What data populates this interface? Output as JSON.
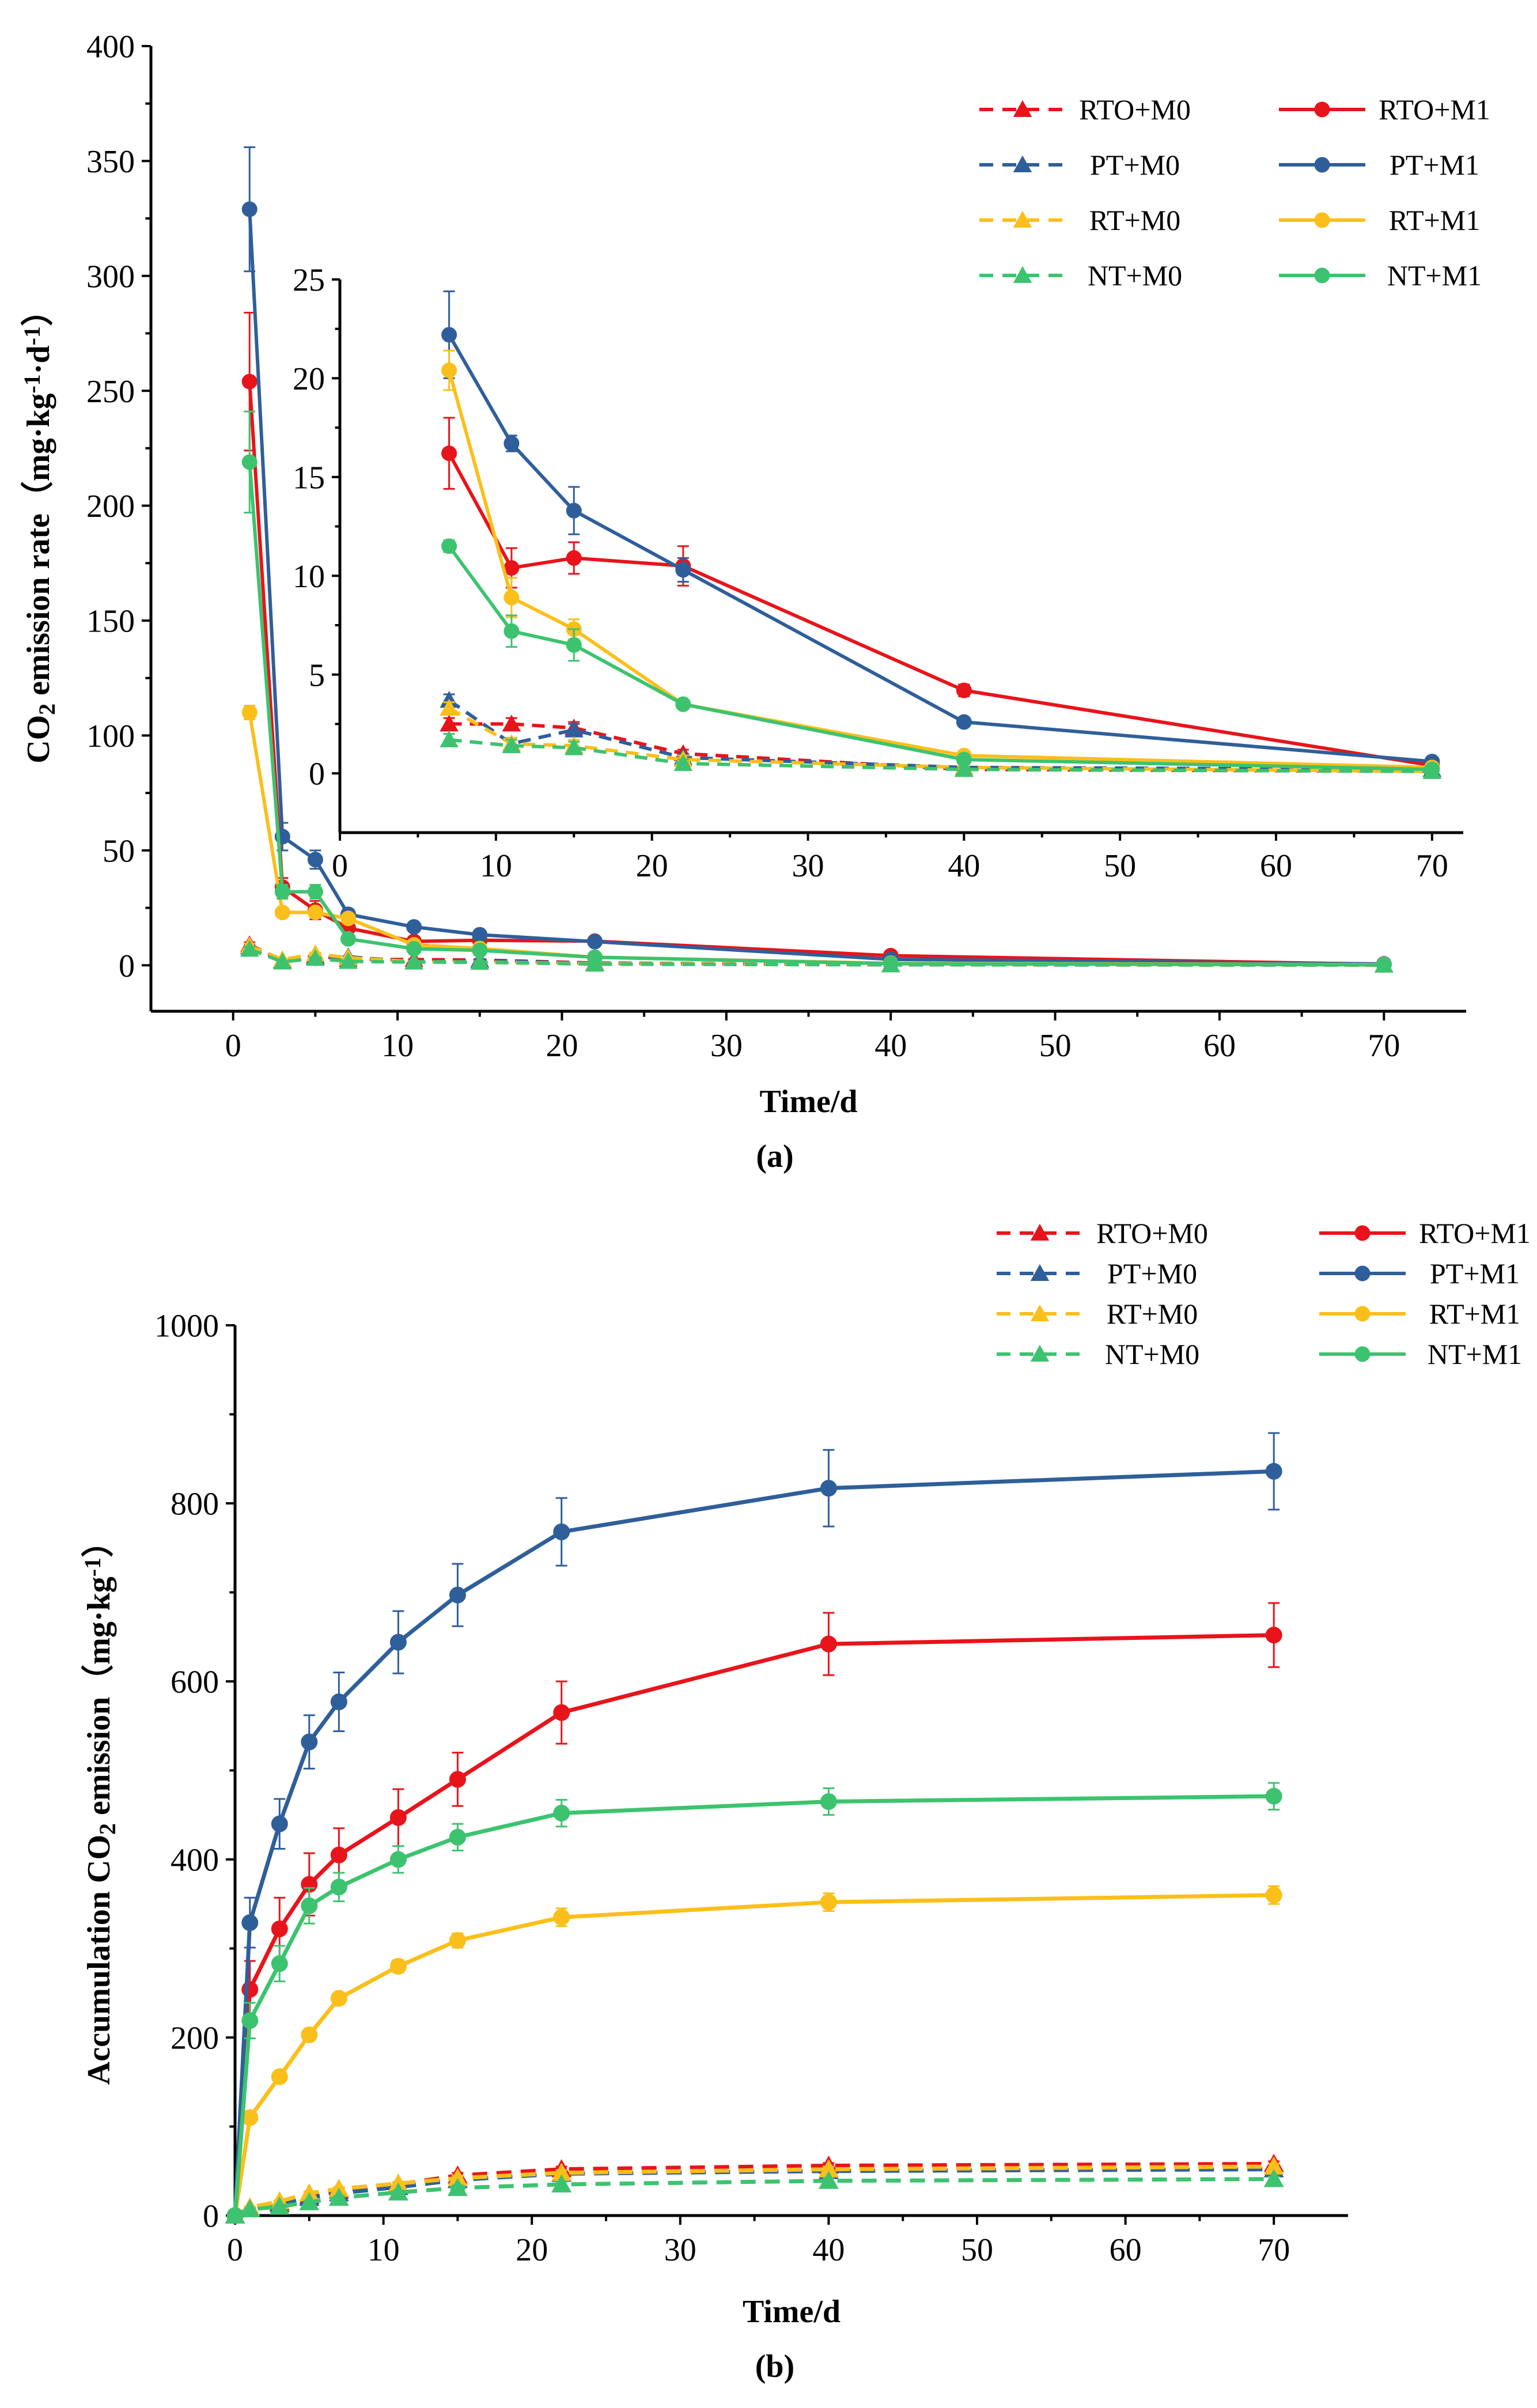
{
  "colors": {
    "RTO": "#E8141B",
    "PT": "#2F5F9A",
    "RT": "#FBBF1B",
    "NT": "#3DC36F"
  },
  "chart_data": [
    {
      "id": "a",
      "type": "line",
      "panel_label": "(a)",
      "title": "",
      "xlabel": "Time/d",
      "ylabel_main": "CO",
      "ylabel_sub": "2",
      "ylabel_rest": " emission rate（mg·kg",
      "ylabel_sup1": "-1",
      "ylabel_mid": "·d",
      "ylabel_sup2": "-1",
      "ylabel_end": "）",
      "xlim": [
        -5,
        75
      ],
      "ylim": [
        -20,
        400
      ],
      "xticks": [
        0,
        10,
        20,
        30,
        40,
        50,
        60,
        70
      ],
      "yticks": [
        0,
        50,
        100,
        150,
        200,
        250,
        300,
        350,
        400
      ],
      "legend": [
        "RTO+M0",
        "PT+M0",
        "RT+M0",
        "NT+M0",
        "RTO+M1",
        "PT+M1",
        "RT+M1",
        "NT+M1"
      ],
      "x": [
        1,
        3,
        5,
        7,
        11,
        15,
        22,
        40,
        70
      ],
      "series": [
        {
          "name": "RTO+M0",
          "group": "RTO",
          "marker": "triangle",
          "dashed": true,
          "values": [
            9,
            2,
            4,
            2.5,
            2.5,
            2.3,
            1,
            0.2,
            0.1
          ],
          "err": [
            1,
            0.3,
            0.5,
            0.3,
            0.3,
            0.3,
            0.2,
            0.1,
            0.1
          ]
        },
        {
          "name": "PT+M0",
          "group": "PT",
          "marker": "triangle",
          "dashed": true,
          "values": [
            8,
            1.5,
            3.5,
            3.7,
            1.5,
            2.2,
            0.8,
            0.3,
            0.2
          ],
          "err": [
            1,
            0.3,
            0.5,
            0.3,
            0.3,
            0.3,
            0.2,
            0.1,
            0.1
          ]
        },
        {
          "name": "RT+M0",
          "group": "RT",
          "marker": "triangle",
          "dashed": true,
          "values": [
            8.5,
            2.5,
            5,
            3.3,
            1.5,
            1.4,
            0.7,
            0.3,
            0.1
          ],
          "err": [
            1,
            0.3,
            0.5,
            0.3,
            0.3,
            0.3,
            0.2,
            0.1,
            0.1
          ]
        },
        {
          "name": "NT+M0",
          "group": "NT",
          "marker": "triangle",
          "dashed": true,
          "values": [
            7,
            1.5,
            3,
            1.7,
            1.4,
            1.3,
            0.5,
            0.2,
            0.1
          ],
          "err": [
            1,
            0.3,
            0.5,
            0.3,
            0.3,
            0.3,
            0.2,
            0.1,
            0.1
          ]
        },
        {
          "name": "RTO+M1",
          "group": "RTO",
          "marker": "circle",
          "dashed": false,
          "values": [
            254,
            34,
            24,
            16.2,
            10.4,
            10.9,
            10.5,
            4.2,
            0.4
          ],
          "err": [
            30,
            4,
            4,
            1.8,
            1,
            0.8,
            1,
            0.3,
            0.1
          ]
        },
        {
          "name": "PT+M1",
          "group": "PT",
          "marker": "circle",
          "dashed": false,
          "values": [
            329,
            56,
            46,
            22.2,
            16.7,
            13.3,
            10.3,
            2.6,
            0.6
          ],
          "err": [
            27,
            6,
            4,
            2.2,
            0.4,
            1.2,
            0.6,
            0.2,
            0.1
          ]
        },
        {
          "name": "RT+M1",
          "group": "RT",
          "marker": "circle",
          "dashed": false,
          "values": [
            110,
            23,
            23,
            20.4,
            8.9,
            7.3,
            3.5,
            0.9,
            0.3
          ],
          "err": [
            3,
            2,
            2,
            1,
            1,
            0.5,
            0.2,
            0.1,
            0.1
          ]
        },
        {
          "name": "NT+M1",
          "group": "NT",
          "marker": "circle",
          "dashed": false,
          "values": [
            219,
            32,
            32,
            11.5,
            7.2,
            6.5,
            3.5,
            0.7,
            0.2
          ],
          "err": [
            22,
            3,
            3,
            0.3,
            0.8,
            0.8,
            0.2,
            0.1,
            0.1
          ]
        }
      ],
      "inset": {
        "xlim": [
          0,
          72
        ],
        "ylim": [
          -3,
          25
        ],
        "xticks": [
          0,
          10,
          20,
          30,
          40,
          50,
          60,
          70
        ],
        "yticks": [
          0,
          5,
          10,
          15,
          20,
          25
        ],
        "x": [
          7,
          11,
          15,
          22,
          40,
          70
        ]
      }
    },
    {
      "id": "b",
      "type": "line",
      "panel_label": "(b)",
      "title": "",
      "xlabel": "Time/d",
      "ylabel_main": "Accumulation CO",
      "ylabel_sub": "2",
      "ylabel_rest": " emission（mg·kg",
      "ylabel_sup1": "-1",
      "ylabel_mid": "",
      "ylabel_sup2": "",
      "ylabel_end": "）",
      "xlim": [
        0,
        75
      ],
      "ylim": [
        0,
        1000
      ],
      "xticks": [
        0,
        10,
        20,
        30,
        40,
        50,
        60,
        70
      ],
      "yticks": [
        0,
        200,
        400,
        600,
        800,
        1000
      ],
      "legend": [
        "RTO+M0",
        "PT+M0",
        "RT+M0",
        "NT+M0",
        "RTO+M1",
        "PT+M1",
        "RT+M1",
        "NT+M1"
      ],
      "x": [
        0,
        1,
        3,
        5,
        7,
        11,
        15,
        22,
        40,
        70
      ],
      "series": [
        {
          "name": "RTO+M0",
          "group": "RTO",
          "marker": "triangle",
          "dashed": true,
          "values": [
            0,
            9,
            15,
            22,
            28,
            35,
            45,
            52,
            56,
            58
          ],
          "err": [
            0,
            1,
            1,
            2,
            2,
            2,
            3,
            3,
            3,
            3
          ]
        },
        {
          "name": "PT+M0",
          "group": "PT",
          "marker": "triangle",
          "dashed": true,
          "values": [
            0,
            8,
            13,
            20,
            25,
            32,
            40,
            47,
            50,
            52
          ],
          "err": [
            0,
            1,
            1,
            2,
            2,
            2,
            3,
            3,
            3,
            3
          ]
        },
        {
          "name": "RT+M0",
          "group": "RT",
          "marker": "triangle",
          "dashed": true,
          "values": [
            0,
            9,
            16,
            25,
            30,
            36,
            42,
            48,
            52,
            55
          ],
          "err": [
            0,
            1,
            1,
            2,
            2,
            2,
            3,
            3,
            3,
            3
          ]
        },
        {
          "name": "NT+M0",
          "group": "NT",
          "marker": "triangle",
          "dashed": true,
          "values": [
            0,
            7,
            10,
            15,
            20,
            26,
            31,
            35,
            39,
            41
          ],
          "err": [
            0,
            1,
            1,
            2,
            2,
            2,
            3,
            3,
            3,
            3
          ]
        },
        {
          "name": "RTO+M1",
          "group": "RTO",
          "marker": "circle",
          "dashed": false,
          "values": [
            0,
            254,
            322,
            372,
            405,
            447,
            490,
            565,
            642,
            652
          ],
          "err": [
            0,
            32,
            35,
            35,
            30,
            32,
            30,
            35,
            35,
            36
          ]
        },
        {
          "name": "PT+M1",
          "group": "PT",
          "marker": "circle",
          "dashed": false,
          "values": [
            0,
            329,
            440,
            532,
            577,
            644,
            697,
            768,
            817,
            836
          ],
          "err": [
            0,
            28,
            28,
            30,
            33,
            35,
            35,
            38,
            43,
            43
          ]
        },
        {
          "name": "RT+M1",
          "group": "RT",
          "marker": "circle",
          "dashed": false,
          "values": [
            0,
            110,
            156,
            203,
            244,
            280,
            309,
            335,
            352,
            360
          ],
          "err": [
            0,
            4,
            5,
            5,
            6,
            7,
            8,
            10,
            10,
            10
          ]
        },
        {
          "name": "NT+M1",
          "group": "NT",
          "marker": "circle",
          "dashed": false,
          "values": [
            0,
            219,
            283,
            348,
            369,
            400,
            425,
            452,
            465,
            471
          ],
          "err": [
            0,
            20,
            20,
            20,
            16,
            15,
            15,
            15,
            15,
            15
          ]
        }
      ]
    }
  ]
}
